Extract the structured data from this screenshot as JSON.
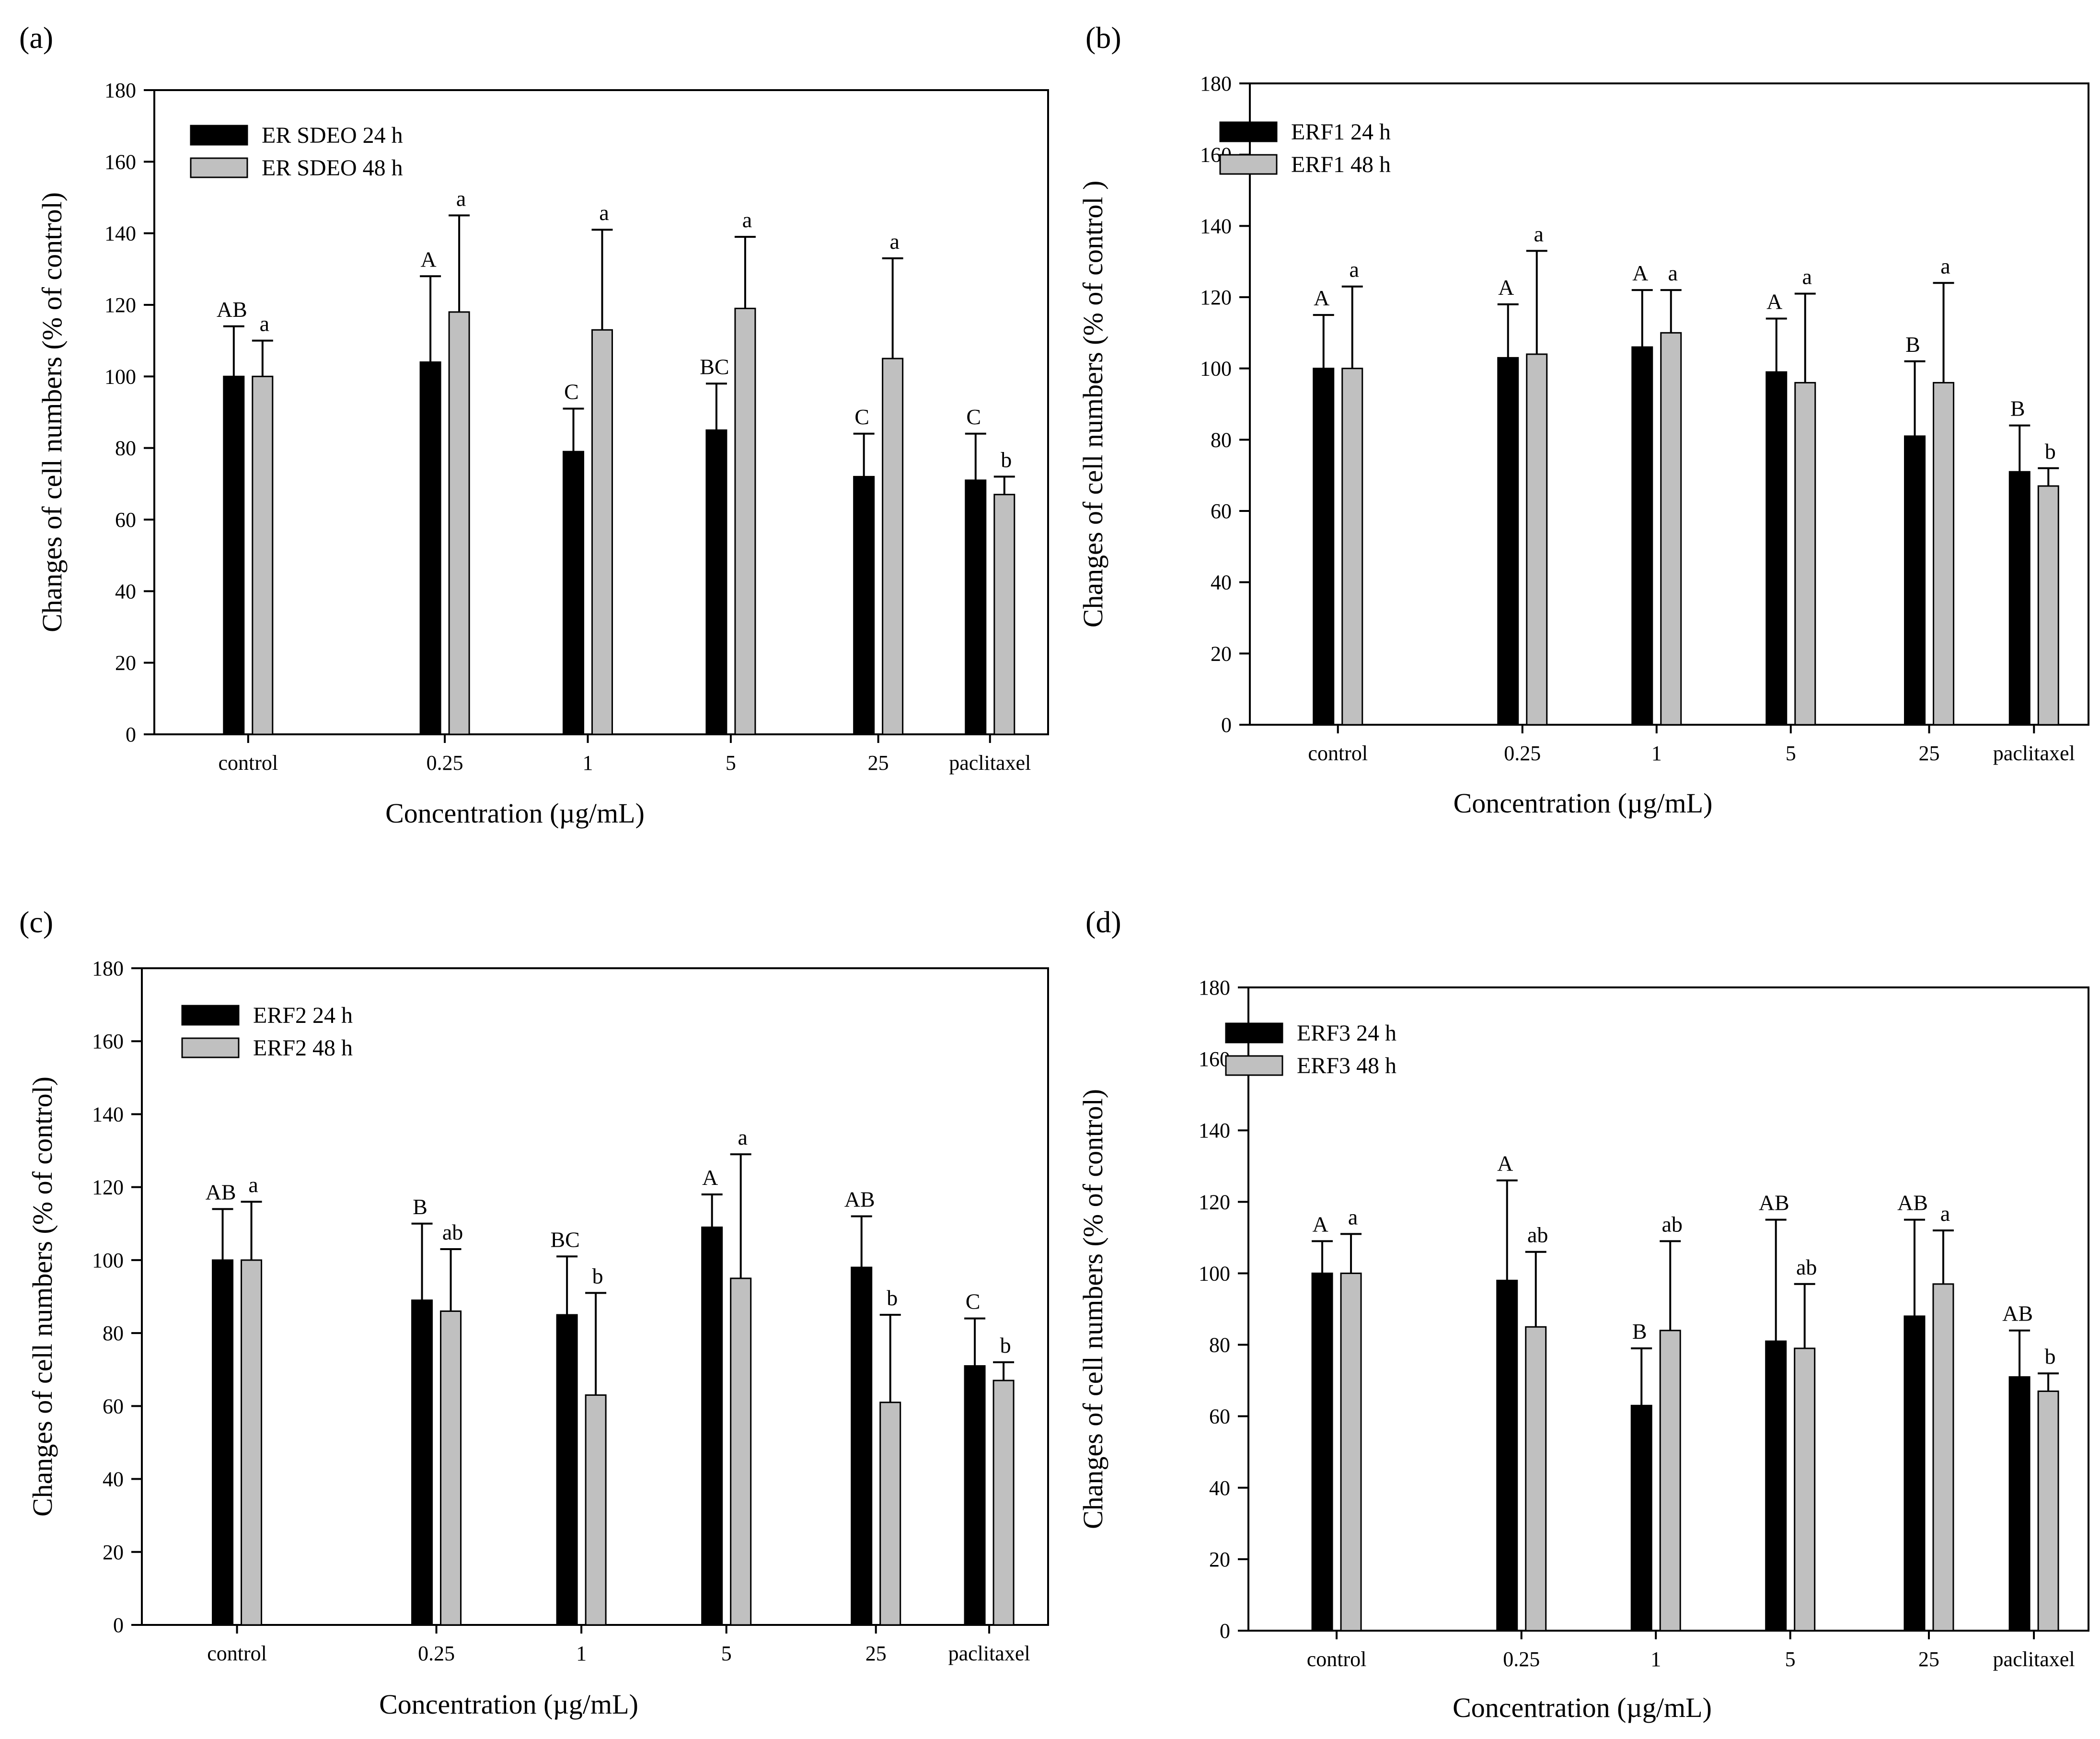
{
  "figure": {
    "panels": [
      {
        "id": "a",
        "label": "(a)"
      },
      {
        "id": "b",
        "label": "(b)"
      },
      {
        "id": "c",
        "label": "(c)"
      },
      {
        "id": "d",
        "label": "(d)"
      }
    ]
  },
  "colors": {
    "series_24h": "#000000",
    "series_48h": "#c0c0c0",
    "axis": "#000000"
  },
  "chart_data": [
    {
      "panel": "(a)",
      "type": "bar",
      "xlabel": "Concentration (µg/mL)",
      "ylabel": "Changes of cell numbers (% of control)",
      "ylim": [
        0,
        180
      ],
      "yticks": [
        0,
        20,
        40,
        60,
        80,
        100,
        120,
        140,
        160,
        180
      ],
      "categories": [
        "control",
        "0.25",
        "1",
        "5",
        "25",
        "paclitaxel"
      ],
      "legend_position": "top-left",
      "series": [
        {
          "name": "ER SDEO 24 h",
          "values": [
            100,
            104,
            79,
            85,
            72,
            71
          ],
          "errors": [
            14,
            24,
            12,
            13,
            12,
            13
          ],
          "labels": [
            "AB",
            "A",
            "C",
            "BC",
            "C",
            "C"
          ]
        },
        {
          "name": "ER SDEO 48 h",
          "values": [
            100,
            118,
            113,
            119,
            105,
            67
          ],
          "errors": [
            10,
            27,
            28,
            20,
            28,
            5
          ],
          "labels": [
            "a",
            "a",
            "a",
            "a",
            "a",
            "b"
          ]
        }
      ]
    },
    {
      "panel": "(b)",
      "type": "bar",
      "xlabel": "Concentration (µg/mL)",
      "ylabel": "Changes of cell numbers (% of control )",
      "ylim": [
        0,
        180
      ],
      "yticks": [
        0,
        20,
        40,
        60,
        80,
        100,
        120,
        140,
        160,
        180
      ],
      "categories": [
        "control",
        "0.25",
        "1",
        "5",
        "25",
        "paclitaxel"
      ],
      "legend_position": "top-left",
      "series": [
        {
          "name": "ERF1 24 h",
          "values": [
            100,
            103,
            106,
            99,
            81,
            71
          ],
          "errors": [
            15,
            15,
            16,
            15,
            21,
            13
          ],
          "labels": [
            "A",
            "A",
            "A",
            "A",
            "B",
            "B"
          ]
        },
        {
          "name": "ERF1 48 h",
          "values": [
            100,
            104,
            110,
            96,
            96,
            67
          ],
          "errors": [
            23,
            29,
            12,
            25,
            28,
            5
          ],
          "labels": [
            "a",
            "a",
            "a",
            "a",
            "a",
            "b"
          ]
        }
      ]
    },
    {
      "panel": "(c)",
      "type": "bar",
      "xlabel": "Concentration (µg/mL)",
      "ylabel": "Changes of cell numbers (% of control)",
      "ylim": [
        0,
        180
      ],
      "yticks": [
        0,
        20,
        40,
        60,
        80,
        100,
        120,
        140,
        160,
        180
      ],
      "categories": [
        "control",
        "0.25",
        "1",
        "5",
        "25",
        "paclitaxel"
      ],
      "legend_position": "top-left",
      "series": [
        {
          "name": "ERF2 24 h",
          "values": [
            100,
            89,
            85,
            109,
            98,
            71
          ],
          "errors": [
            14,
            21,
            16,
            9,
            14,
            13
          ],
          "labels": [
            "AB",
            "B",
            "BC",
            "A",
            "AB",
            "C"
          ]
        },
        {
          "name": "ERF2 48 h",
          "values": [
            100,
            86,
            63,
            95,
            61,
            67
          ],
          "errors": [
            16,
            17,
            28,
            34,
            24,
            5
          ],
          "labels": [
            "a",
            "ab",
            "b",
            "a",
            "b",
            "b"
          ]
        }
      ]
    },
    {
      "panel": "(d)",
      "type": "bar",
      "xlabel": "Concentration (µg/mL)",
      "ylabel": "Changes of cell numbers (% of control)",
      "ylim": [
        0,
        180
      ],
      "yticks": [
        0,
        20,
        40,
        60,
        80,
        100,
        120,
        140,
        160,
        180
      ],
      "categories": [
        "control",
        "0.25",
        "1",
        "5",
        "25",
        "paclitaxel"
      ],
      "legend_position": "top-left",
      "series": [
        {
          "name": "ERF3 24 h",
          "values": [
            100,
            98,
            63,
            81,
            88,
            71
          ],
          "errors": [
            9,
            28,
            16,
            34,
            27,
            13
          ],
          "labels": [
            "A",
            "A",
            "B",
            "AB",
            "AB",
            "AB"
          ]
        },
        {
          "name": "ERF3 48 h",
          "values": [
            100,
            85,
            84,
            79,
            97,
            67
          ],
          "errors": [
            11,
            21,
            25,
            18,
            15,
            5
          ],
          "labels": [
            "a",
            "ab",
            "ab",
            "ab",
            "a",
            "b"
          ]
        }
      ]
    }
  ]
}
